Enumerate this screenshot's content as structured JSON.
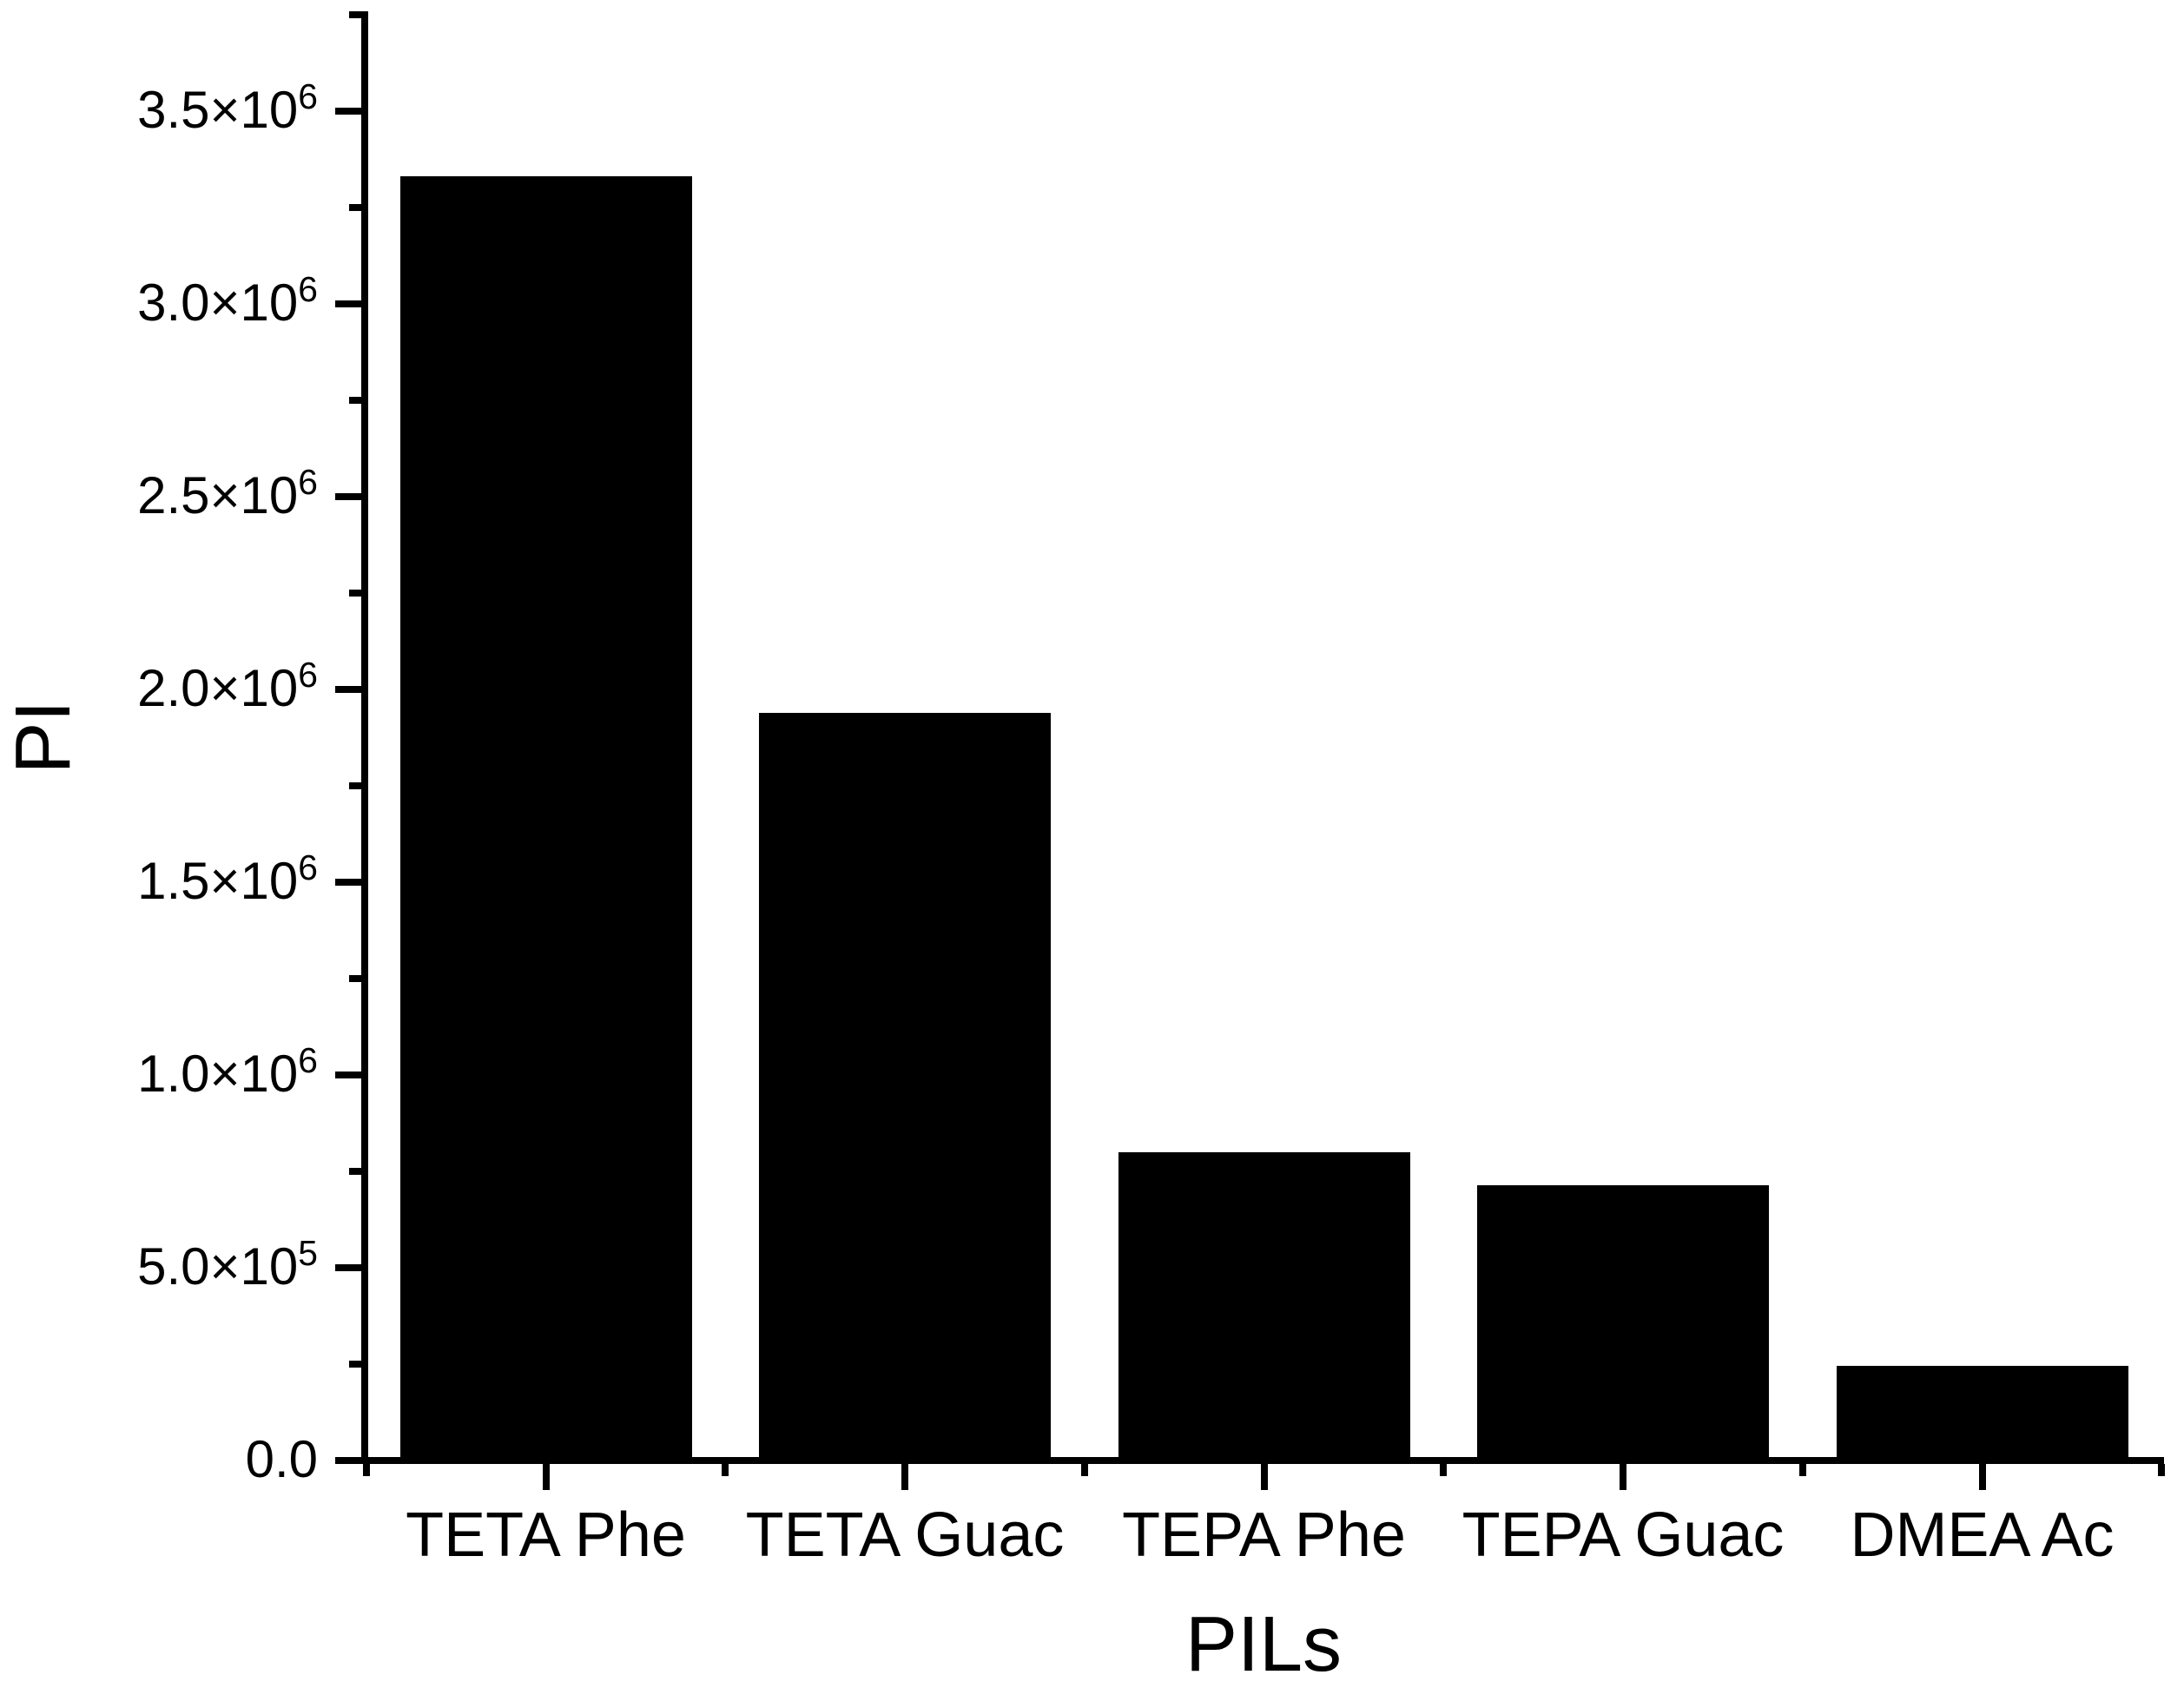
{
  "chart_data": {
    "type": "bar",
    "title": "",
    "xlabel": "PILs",
    "ylabel": "PI",
    "categories": [
      "TETA Phe",
      "TETA Guac",
      "TEPA Phe",
      "TEPA Guac",
      "DMEA Ac"
    ],
    "values": [
      3330000,
      1940000,
      800000,
      715000,
      245000
    ],
    "series": [
      {
        "name": "PI",
        "values": [
          3330000,
          1940000,
          800000,
          715000,
          245000
        ]
      }
    ],
    "ylim": [
      0,
      3750000
    ],
    "y_major_tick_interval": 500000,
    "y_minor_tick_interval": 250000,
    "y_tick_labels": [
      {
        "value": 0,
        "mantissa": "0.0",
        "exponent": ""
      },
      {
        "value": 500000,
        "mantissa": "5.0×10",
        "exponent": "5"
      },
      {
        "value": 1000000,
        "mantissa": "1.0×10",
        "exponent": "6"
      },
      {
        "value": 1500000,
        "mantissa": "1.5×10",
        "exponent": "6"
      },
      {
        "value": 2000000,
        "mantissa": "2.0×10",
        "exponent": "6"
      },
      {
        "value": 2500000,
        "mantissa": "2.5×10",
        "exponent": "6"
      },
      {
        "value": 3000000,
        "mantissa": "3.0×10",
        "exponent": "6"
      },
      {
        "value": 3500000,
        "mantissa": "3.5×10",
        "exponent": "6"
      }
    ],
    "bar_color": "#000000",
    "axis_color": "#000000",
    "background_color": "#ffffff",
    "grid": false,
    "legend": "none",
    "tick_direction": "out"
  }
}
